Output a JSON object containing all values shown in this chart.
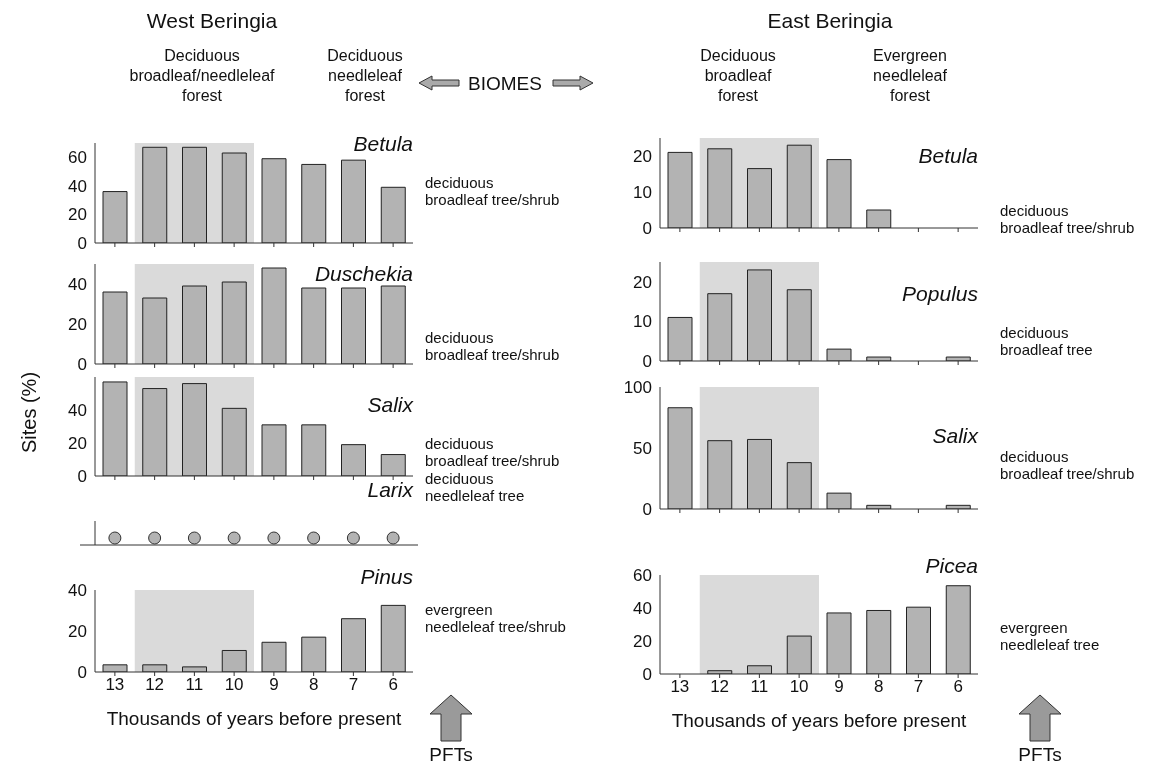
{
  "chart_data": [
    {
      "type": "bar",
      "title": "Betula",
      "categories": [
        "13",
        "12",
        "11",
        "10",
        "9",
        "8",
        "7",
        "6"
      ],
      "values": [
        36,
        67,
        67,
        63,
        59,
        55,
        58,
        39
      ],
      "color": "#b3b3b3",
      "ylim": [
        0,
        70
      ],
      "yticks": [
        0,
        20,
        40,
        60
      ],
      "tick_labels": "y",
      "bands": [
        {
          "axis": "x",
          "from": "12",
          "to": "10",
          "color": "#dadada"
        }
      ],
      "annotations": [
        "West Beringia",
        "Deciduous broadleaf/needleleaf forest",
        "Deciduous needleleaf forest",
        "BIOMES",
        "deciduous broadleaf tree/shrub"
      ]
    },
    {
      "type": "bar",
      "title": "Duschekia",
      "categories": [
        "13",
        "12",
        "11",
        "10",
        "9",
        "8",
        "7",
        "6"
      ],
      "values": [
        36,
        33,
        39,
        41,
        48,
        38,
        38,
        39
      ],
      "color": "#b3b3b3",
      "ylim": [
        0,
        50
      ],
      "yticks": [
        0,
        20,
        40
      ],
      "tick_labels": "y",
      "bands": [
        {
          "axis": "x",
          "from": "12",
          "to": "10",
          "color": "#dadada"
        }
      ],
      "annotations": [
        "deciduous broadleaf tree/shrub"
      ]
    },
    {
      "type": "bar",
      "title": "Salix",
      "ylabel": "Sites (%)",
      "categories": [
        "13",
        "12",
        "11",
        "10",
        "9",
        "8",
        "7",
        "6"
      ],
      "values": [
        57,
        53,
        56,
        41,
        31,
        31,
        19,
        13
      ],
      "color": "#b3b3b3",
      "ylim": [
        0,
        60
      ],
      "yticks": [
        0,
        20,
        40
      ],
      "tick_labels": "y",
      "bands": [
        {
          "axis": "x",
          "from": "12",
          "to": "10",
          "color": "#dadada"
        }
      ],
      "annotations": [
        "deciduous broadleaf tree/shrub"
      ]
    },
    {
      "type": "other",
      "title": "Larix",
      "categories": [
        null,
        null,
        null,
        null,
        null,
        null,
        null,
        null
      ],
      "color": "#b3b3b3",
      "annotations": [
        "deciduous needleleaf tree"
      ]
    },
    {
      "type": "bar",
      "title": "Pinus",
      "xlabel": "Thousands of years before present",
      "categories": [
        "13",
        "12",
        "11",
        "10",
        "9",
        "8",
        "7",
        "6"
      ],
      "values": [
        3.5,
        3.5,
        2.5,
        10.5,
        14.5,
        17,
        26,
        32.5
      ],
      "color": "#b3b3b3",
      "ylim": [
        0,
        40
      ],
      "yticks": [
        0,
        20,
        40
      ],
      "bands": [
        {
          "axis": "x",
          "from": "12",
          "to": "10",
          "color": "#dadada"
        }
      ],
      "annotations": [
        "evergreen needleleaf tree/shrub",
        "PFTs"
      ]
    },
    {
      "type": "bar",
      "title": "Betula",
      "categories": [
        "13",
        "12",
        "11",
        "10",
        "9",
        "8",
        "7",
        "6"
      ],
      "values": [
        21,
        22,
        16.5,
        23,
        19,
        5,
        0,
        0
      ],
      "color": "#b3b3b3",
      "ylim": [
        0,
        25
      ],
      "yticks": [
        0,
        10,
        20
      ],
      "tick_labels": "y",
      "bands": [
        {
          "axis": "x",
          "from": "12",
          "to": "10",
          "color": "#dadada"
        }
      ],
      "annotations": [
        "East Beringia",
        "Deciduous broadleaf forest",
        "Evergreen needleleaf forest",
        "deciduous broadleaf tree/shrub"
      ]
    },
    {
      "type": "bar",
      "title": "Populus",
      "categories": [
        "13",
        "12",
        "11",
        "10",
        "9",
        "8",
        "7",
        "6"
      ],
      "values": [
        11,
        17,
        23,
        18,
        3,
        1,
        0,
        1
      ],
      "color": "#b3b3b3",
      "ylim": [
        0,
        25
      ],
      "yticks": [
        0,
        10,
        20
      ],
      "tick_labels": "y",
      "bands": [
        {
          "axis": "x",
          "from": "12",
          "to": "10",
          "color": "#dadada"
        }
      ],
      "annotations": [
        "deciduous broadleaf tree"
      ]
    },
    {
      "type": "bar",
      "title": "Salix",
      "categories": [
        "13",
        "12",
        "11",
        "10",
        "9",
        "8",
        "7",
        "6"
      ],
      "values": [
        83,
        56,
        57,
        38,
        13,
        3,
        0,
        3
      ],
      "color": "#b3b3b3",
      "ylim": [
        0,
        100
      ],
      "yticks": [
        0,
        50,
        100
      ],
      "tick_labels": "y",
      "bands": [
        {
          "axis": "x",
          "from": "12",
          "to": "10",
          "color": "#dadada"
        }
      ],
      "annotations": [
        "deciduous broadleaf tree/shrub"
      ]
    },
    {
      "type": "bar",
      "title": "Picea",
      "xlabel": "Thousands of years before present",
      "categories": [
        "13",
        "12",
        "11",
        "10",
        "9",
        "8",
        "7",
        "6"
      ],
      "values": [
        0,
        2,
        5,
        23,
        37,
        38.5,
        40.5,
        53.5
      ],
      "color": "#b3b3b3",
      "ylim": [
        0,
        60
      ],
      "yticks": [
        0,
        20,
        40,
        60
      ],
      "bands": [
        {
          "axis": "x",
          "from": "12",
          "to": "10",
          "color": "#dadada"
        }
      ],
      "annotations": [
        "evergreen needleleaf tree",
        "PFTs"
      ]
    }
  ]
}
